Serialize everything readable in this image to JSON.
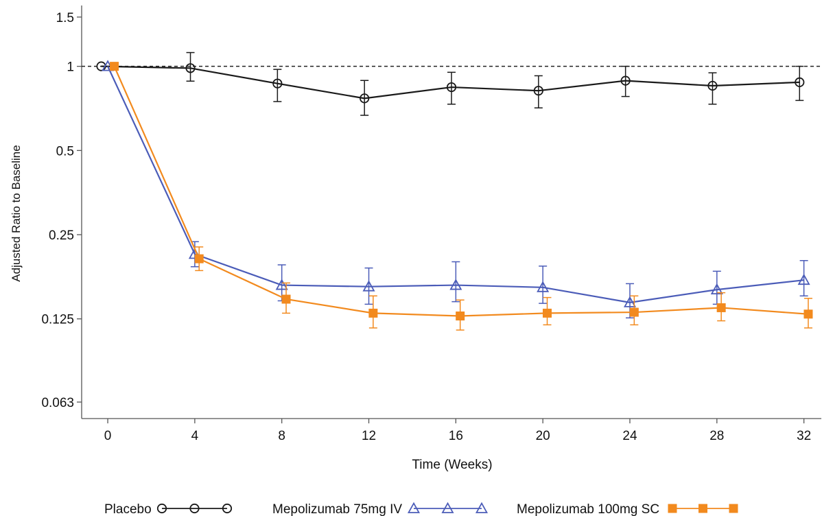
{
  "chart_data": {
    "type": "line",
    "xlabel": "Time (Weeks)",
    "ylabel": "Adjusted Ratio to Baseline",
    "y_scale": "log2",
    "ylim": [
      0.055,
      1.65
    ],
    "xlim": [
      -1.2,
      32.8
    ],
    "x_ticks": [
      0,
      4,
      8,
      12,
      16,
      20,
      24,
      28,
      32
    ],
    "y_ticks": [
      0.063,
      0.125,
      0.25,
      0.5,
      1,
      1.5
    ],
    "y_tick_labels": [
      "0.063",
      "0.125",
      "0.25",
      "0.5",
      "1",
      "1.5"
    ],
    "reference_line": {
      "y": 1,
      "style": "dashed"
    },
    "grid": false,
    "legend_position": "bottom",
    "series": [
      {
        "name": "Placebo",
        "color": "#1a1a1a",
        "marker": "open-circle",
        "x_offset": -0.2,
        "x": [
          0,
          4,
          8,
          12,
          16,
          20,
          24,
          28,
          32
        ],
        "values": [
          1.0,
          0.985,
          0.868,
          0.768,
          0.842,
          0.818,
          0.888,
          0.852,
          0.877
        ],
        "err_low": [
          1.0,
          0.885,
          0.748,
          0.668,
          0.732,
          0.71,
          0.78,
          0.732,
          0.755
        ],
        "err_high": [
          1.0,
          1.12,
          0.975,
          0.89,
          0.952,
          0.925,
          1.0,
          0.948,
          1.0
        ]
      },
      {
        "name": "Mepolizumab 75mg IV",
        "color": "#4b5cb8",
        "marker": "open-triangle",
        "x_offset": 0.0,
        "x": [
          0,
          4,
          8,
          12,
          16,
          20,
          24,
          28,
          32
        ],
        "values": [
          1.0,
          0.213,
          0.165,
          0.163,
          0.165,
          0.162,
          0.143,
          0.159,
          0.172
        ],
        "err_low": [
          1.0,
          0.192,
          0.145,
          0.141,
          0.144,
          0.142,
          0.126,
          0.141,
          0.151
        ],
        "err_high": [
          1.0,
          0.236,
          0.195,
          0.19,
          0.2,
          0.193,
          0.167,
          0.185,
          0.202
        ]
      },
      {
        "name": "Mepolizumab 100mg SC",
        "color": "#f28a1e",
        "marker": "filled-square",
        "x_offset": 0.2,
        "x": [
          0,
          4,
          8,
          12,
          16,
          20,
          24,
          28,
          32
        ],
        "values": [
          1.0,
          0.205,
          0.147,
          0.131,
          0.128,
          0.131,
          0.132,
          0.137,
          0.13
        ],
        "err_low": [
          1.0,
          0.186,
          0.131,
          0.116,
          0.114,
          0.119,
          0.119,
          0.123,
          0.116
        ],
        "err_high": [
          1.0,
          0.226,
          0.168,
          0.151,
          0.146,
          0.149,
          0.151,
          0.155,
          0.148
        ]
      }
    ]
  }
}
